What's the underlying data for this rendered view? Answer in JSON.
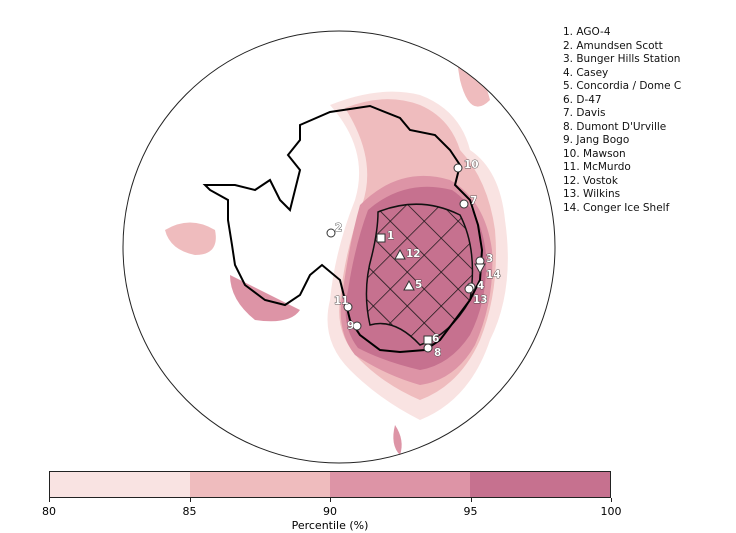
{
  "stations": [
    {
      "num": "1",
      "name": "AGO-4",
      "marker": "square"
    },
    {
      "num": "2",
      "name": "Amundsen Scott",
      "marker": "circle"
    },
    {
      "num": "3",
      "name": "Bunger Hills Station",
      "marker": "circle"
    },
    {
      "num": "4",
      "name": "Casey",
      "marker": "circle"
    },
    {
      "num": "5",
      "name": "Concordia / Dome C",
      "marker": "triangle"
    },
    {
      "num": "6",
      "name": "D-47",
      "marker": "square"
    },
    {
      "num": "7",
      "name": "Davis",
      "marker": "circle"
    },
    {
      "num": "8",
      "name": "Dumont D'Urville",
      "marker": "circle"
    },
    {
      "num": "9",
      "name": "Jang Bogo",
      "marker": "circle"
    },
    {
      "num": "10",
      "name": "Mawson",
      "marker": "circle"
    },
    {
      "num": "11",
      "name": "McMurdo",
      "marker": "circle"
    },
    {
      "num": "12",
      "name": "Vostok",
      "marker": "triangle"
    },
    {
      "num": "13",
      "name": "Wilkins",
      "marker": "circle"
    },
    {
      "num": "14",
      "name": "Conger Ice Shelf",
      "marker": "triangle-down"
    }
  ],
  "legend": [
    "1. AGO-4",
    "2. Amundsen Scott",
    "3. Bunger Hills Station",
    "4. Casey",
    "5. Concordia / Dome C",
    "6. D-47",
    "7. Davis",
    "8. Dumont D'Urville",
    "9. Jang Bogo",
    "10. Mawson",
    "11. McMurdo",
    "12. Vostok",
    "13. Wilkins",
    "14. Conger Ice Shelf"
  ],
  "colorbar": {
    "label": "Percentile (%)",
    "ticks": [
      "80",
      "85",
      "90",
      "95",
      "100"
    ],
    "colors": [
      "#f9e3e2",
      "#efbcbe",
      "#dd94a6",
      "#c6718f"
    ]
  }
}
